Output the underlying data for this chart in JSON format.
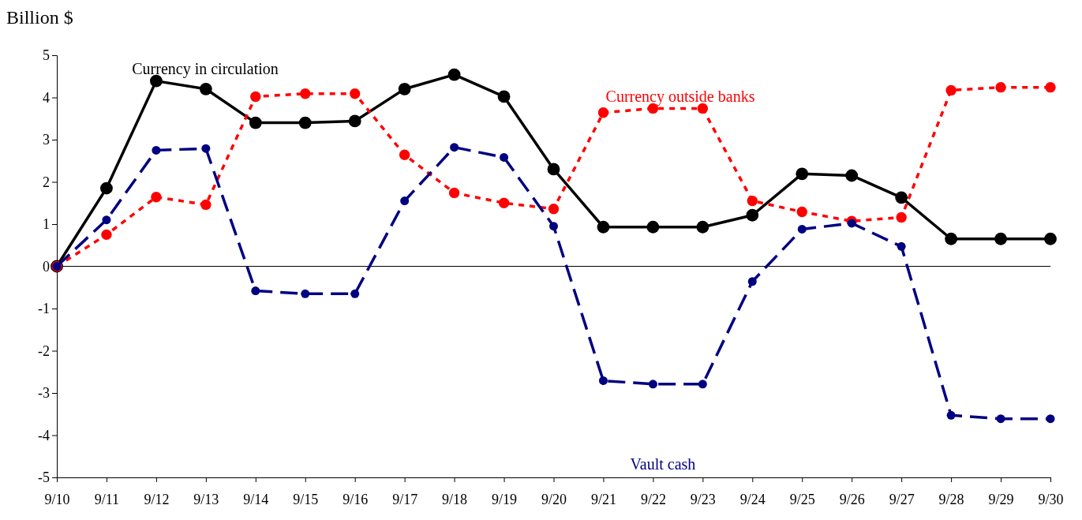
{
  "chart_data": {
    "type": "line",
    "ylabel": "Billion $",
    "categories": [
      "9/10",
      "9/11",
      "9/12",
      "9/13",
      "9/14",
      "9/15",
      "9/16",
      "9/17",
      "9/18",
      "9/19",
      "9/20",
      "9/21",
      "9/22",
      "9/23",
      "9/24",
      "9/25",
      "9/26",
      "9/27",
      "9/28",
      "9/29",
      "9/30"
    ],
    "series": [
      {
        "name": "Currency in circulation",
        "color": "#000000",
        "line_style": "solid",
        "values": [
          0,
          1.85,
          4.39,
          4.2,
          3.4,
          3.4,
          3.44,
          4.2,
          4.54,
          4.02,
          2.3,
          0.93,
          0.93,
          0.93,
          1.21,
          2.19,
          2.15,
          1.63,
          0.65,
          0.65,
          0.65
        ]
      },
      {
        "name": "Currency outside banks",
        "color": "#ff0000",
        "line_style": "dotted",
        "values": [
          0,
          0.75,
          1.64,
          1.46,
          4.02,
          4.09,
          4.09,
          2.64,
          1.74,
          1.5,
          1.36,
          3.64,
          3.74,
          3.74,
          1.55,
          1.29,
          1.07,
          1.16,
          4.17,
          4.24,
          4.24
        ]
      },
      {
        "name": "Vault cash",
        "color": "#000080",
        "line_style": "dashed",
        "values": [
          0,
          1.1,
          2.75,
          2.79,
          -0.58,
          -0.65,
          -0.65,
          1.55,
          2.82,
          2.58,
          0.95,
          -2.71,
          -2.79,
          -2.79,
          -0.36,
          0.88,
          1.02,
          0.47,
          -3.53,
          -3.61,
          -3.61
        ]
      }
    ],
    "ylim": [
      -5,
      5
    ],
    "yticks": [
      -5,
      -4,
      -3,
      -2,
      -1,
      0,
      1,
      2,
      3,
      4,
      5
    ],
    "ref_lines": [
      {
        "axis": "y",
        "value": 0,
        "color": "#000000"
      }
    ],
    "marker": "circle",
    "grid": false,
    "legend": false
  }
}
